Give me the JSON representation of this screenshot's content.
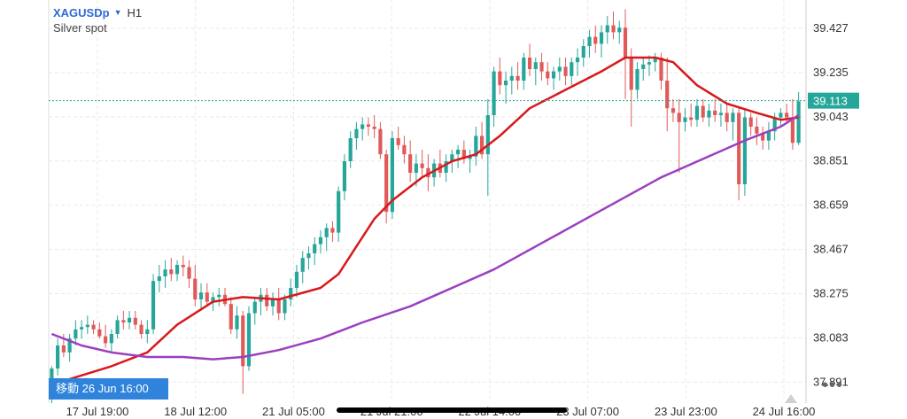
{
  "header": {
    "symbol": "XAGUSDp",
    "timeframe": "H1",
    "subtitle": "Silver spot"
  },
  "nav_button": {
    "label": "移動 26 Jun 16:00"
  },
  "more_icon": "more-horizontal-icon",
  "colors": {
    "up": "#26a69a",
    "down": "#e05a5a",
    "ma_fast": "#d7191c",
    "ma_slow": "#9b3fc0",
    "price_line": "#26a69a",
    "grid": "#e9e9e9",
    "accent": "#2f83db"
  },
  "chart_data": {
    "type": "candlestick",
    "symbol": "XAGUSDp",
    "timeframe": "H1",
    "ylim": [
      37.8,
      39.55
    ],
    "y_ticks": [
      "39.427",
      "39.235",
      "39.043",
      "38.851",
      "38.659",
      "38.467",
      "38.275",
      "38.083",
      "37.891"
    ],
    "current_price": "39.113",
    "x_tick_labels": [
      "17 Jul 19:00",
      "18 Jul 12:00",
      "21 Jul 05:00",
      "21 Jul 21:00",
      "22 Jul 14:00",
      "23 Jul 07:00",
      "23 Jul 23:00",
      "24 Jul 16:00"
    ],
    "grid": true,
    "candles": [
      [
        37.84,
        37.96,
        37.8,
        37.95
      ],
      [
        37.95,
        38.08,
        37.92,
        38.05
      ],
      [
        38.05,
        38.1,
        38.0,
        38.02
      ],
      [
        38.02,
        38.1,
        37.98,
        38.08
      ],
      [
        38.08,
        38.16,
        38.05,
        38.12
      ],
      [
        38.12,
        38.16,
        38.08,
        38.13
      ],
      [
        38.13,
        38.18,
        38.1,
        38.14
      ],
      [
        38.14,
        38.16,
        38.1,
        38.12
      ],
      [
        38.12,
        38.15,
        38.08,
        38.09
      ],
      [
        38.09,
        38.14,
        38.04,
        38.06
      ],
      [
        38.06,
        38.12,
        38.02,
        38.1
      ],
      [
        38.1,
        38.18,
        38.08,
        38.16
      ],
      [
        38.16,
        38.2,
        38.12,
        38.15
      ],
      [
        38.15,
        38.2,
        38.12,
        38.17
      ],
      [
        38.17,
        38.2,
        38.12,
        38.14
      ],
      [
        38.14,
        38.16,
        38.08,
        38.1
      ],
      [
        38.1,
        38.16,
        38.06,
        38.12
      ],
      [
        38.12,
        38.36,
        38.1,
        38.33
      ],
      [
        38.33,
        38.4,
        38.28,
        38.35
      ],
      [
        38.35,
        38.42,
        38.3,
        38.38
      ],
      [
        38.38,
        38.43,
        38.33,
        38.36
      ],
      [
        38.36,
        38.42,
        38.33,
        38.4
      ],
      [
        38.4,
        38.44,
        38.35,
        38.39
      ],
      [
        38.39,
        38.42,
        38.3,
        38.34
      ],
      [
        38.34,
        38.4,
        38.22,
        38.25
      ],
      [
        38.25,
        38.32,
        38.2,
        38.28
      ],
      [
        38.28,
        38.32,
        38.22,
        38.24
      ],
      [
        38.24,
        38.28,
        38.2,
        38.26
      ],
      [
        38.26,
        38.3,
        38.22,
        38.27
      ],
      [
        38.27,
        38.3,
        38.22,
        38.23
      ],
      [
        38.23,
        38.26,
        38.1,
        38.12
      ],
      [
        38.12,
        38.22,
        38.08,
        38.18
      ],
      [
        38.18,
        38.2,
        37.84,
        37.96
      ],
      [
        37.96,
        38.22,
        37.94,
        38.19
      ],
      [
        38.19,
        38.26,
        38.14,
        38.24
      ],
      [
        38.24,
        38.3,
        38.18,
        38.27
      ],
      [
        38.27,
        38.3,
        38.2,
        38.22
      ],
      [
        38.22,
        38.28,
        38.18,
        38.25
      ],
      [
        38.25,
        38.3,
        38.16,
        38.19
      ],
      [
        38.19,
        38.27,
        38.16,
        38.25
      ],
      [
        38.25,
        38.34,
        38.22,
        38.3
      ],
      [
        38.3,
        38.4,
        38.26,
        38.37
      ],
      [
        38.37,
        38.46,
        38.32,
        38.43
      ],
      [
        38.43,
        38.48,
        38.38,
        38.45
      ],
      [
        38.45,
        38.52,
        38.4,
        38.49
      ],
      [
        38.49,
        38.55,
        38.45,
        38.52
      ],
      [
        38.52,
        38.58,
        38.46,
        38.56
      ],
      [
        38.56,
        38.59,
        38.5,
        38.54
      ],
      [
        38.54,
        38.74,
        38.5,
        38.72
      ],
      [
        38.72,
        38.88,
        38.68,
        38.85
      ],
      [
        38.85,
        38.98,
        38.82,
        38.95
      ],
      [
        38.95,
        39.02,
        38.9,
        38.99
      ],
      [
        38.99,
        39.04,
        38.94,
        39.01
      ],
      [
        39.01,
        39.04,
        38.96,
        39.0
      ],
      [
        39.0,
        39.05,
        38.95,
        38.99
      ],
      [
        38.99,
        39.02,
        38.86,
        38.88
      ],
      [
        38.88,
        38.9,
        38.58,
        38.63
      ],
      [
        38.63,
        38.98,
        38.6,
        38.95
      ],
      [
        38.95,
        39.0,
        38.9,
        38.92
      ],
      [
        38.92,
        38.96,
        38.84,
        38.88
      ],
      [
        38.88,
        38.94,
        38.76,
        38.8
      ],
      [
        38.8,
        38.88,
        38.74,
        38.84
      ],
      [
        38.84,
        38.9,
        38.78,
        38.82
      ],
      [
        38.82,
        38.88,
        38.72,
        38.78
      ],
      [
        38.78,
        38.86,
        38.74,
        38.84
      ],
      [
        38.84,
        38.9,
        38.78,
        38.8
      ],
      [
        38.8,
        38.88,
        38.76,
        38.85
      ],
      [
        38.85,
        38.9,
        38.8,
        38.88
      ],
      [
        38.88,
        38.92,
        38.82,
        38.9
      ],
      [
        38.9,
        38.94,
        38.84,
        38.86
      ],
      [
        38.86,
        38.9,
        38.8,
        38.87
      ],
      [
        38.87,
        39.0,
        38.83,
        38.96
      ],
      [
        38.96,
        39.02,
        38.86,
        38.88
      ],
      [
        38.88,
        39.12,
        38.7,
        39.05
      ],
      [
        39.05,
        39.26,
        39.0,
        39.24
      ],
      [
        39.24,
        39.3,
        39.14,
        39.18
      ],
      [
        39.18,
        39.24,
        39.1,
        39.2
      ],
      [
        39.2,
        39.26,
        39.14,
        39.22
      ],
      [
        39.22,
        39.28,
        39.16,
        39.2
      ],
      [
        39.2,
        39.32,
        39.16,
        39.3
      ],
      [
        39.3,
        39.36,
        39.22,
        39.25
      ],
      [
        39.25,
        39.3,
        39.18,
        39.28
      ],
      [
        39.28,
        39.32,
        39.2,
        39.24
      ],
      [
        39.24,
        39.28,
        39.18,
        39.21
      ],
      [
        39.21,
        39.26,
        39.16,
        39.24
      ],
      [
        39.24,
        39.3,
        39.2,
        39.26
      ],
      [
        39.26,
        39.3,
        39.18,
        39.22
      ],
      [
        39.22,
        39.3,
        39.18,
        39.28
      ],
      [
        39.28,
        39.34,
        39.22,
        39.3
      ],
      [
        39.3,
        39.38,
        39.26,
        39.35
      ],
      [
        39.35,
        39.42,
        39.3,
        39.39
      ],
      [
        39.39,
        39.44,
        39.32,
        39.36
      ],
      [
        39.36,
        39.44,
        39.3,
        39.41
      ],
      [
        39.41,
        39.48,
        39.36,
        39.44
      ],
      [
        39.44,
        39.5,
        39.38,
        39.41
      ],
      [
        39.41,
        39.46,
        39.36,
        39.43
      ],
      [
        39.43,
        39.51,
        39.12,
        39.3
      ],
      [
        39.3,
        39.34,
        39.0,
        39.16
      ],
      [
        39.16,
        39.28,
        39.12,
        39.25
      ],
      [
        39.25,
        39.3,
        39.2,
        39.27
      ],
      [
        39.27,
        39.31,
        39.22,
        39.28
      ],
      [
        39.28,
        39.32,
        39.24,
        39.3
      ],
      [
        39.3,
        39.32,
        39.16,
        39.2
      ],
      [
        39.2,
        39.3,
        38.98,
        39.08
      ],
      [
        39.08,
        39.12,
        39.02,
        39.06
      ],
      [
        39.06,
        39.12,
        38.8,
        39.02
      ],
      [
        39.02,
        39.08,
        38.98,
        39.04
      ],
      [
        39.04,
        39.1,
        39.0,
        39.03
      ],
      [
        39.03,
        39.12,
        39.0,
        39.09
      ],
      [
        39.09,
        39.12,
        39.02,
        39.04
      ],
      [
        39.04,
        39.1,
        39.0,
        39.07
      ],
      [
        39.07,
        39.12,
        39.02,
        39.05
      ],
      [
        39.05,
        39.1,
        39.0,
        39.06
      ],
      [
        39.06,
        39.1,
        38.98,
        39.02
      ],
      [
        39.02,
        39.08,
        38.94,
        39.06
      ],
      [
        39.06,
        39.08,
        38.68,
        38.75
      ],
      [
        38.75,
        39.08,
        38.7,
        39.04
      ],
      [
        39.04,
        39.06,
        38.96,
        39.0
      ],
      [
        39.0,
        39.04,
        38.92,
        38.97
      ],
      [
        38.97,
        39.0,
        38.9,
        38.94
      ],
      [
        38.94,
        39.02,
        38.9,
        38.98
      ],
      [
        38.98,
        39.06,
        38.94,
        39.04
      ],
      [
        39.04,
        39.08,
        39.0,
        39.06
      ],
      [
        39.06,
        39.1,
        39.02,
        39.04
      ],
      [
        39.04,
        39.12,
        38.9,
        38.93
      ],
      [
        38.93,
        39.15,
        38.92,
        39.11
      ]
    ],
    "series": [
      {
        "name": "",
        "color": "#d7191c",
        "values": [
          [
            0,
            37.88
          ],
          [
            5,
            37.92
          ],
          [
            10,
            37.96
          ],
          [
            16,
            38.02
          ],
          [
            21,
            38.14
          ],
          [
            27,
            38.24
          ],
          [
            32,
            38.26
          ],
          [
            38,
            38.25
          ],
          [
            45,
            38.3
          ],
          [
            48,
            38.36
          ],
          [
            51,
            38.48
          ],
          [
            54,
            38.6
          ],
          [
            57,
            38.68
          ],
          [
            62,
            38.78
          ],
          [
            67,
            38.85
          ],
          [
            71,
            38.88
          ],
          [
            75,
            38.96
          ],
          [
            80,
            39.08
          ],
          [
            86,
            39.16
          ],
          [
            92,
            39.24
          ],
          [
            96,
            39.3
          ],
          [
            101,
            39.3
          ],
          [
            104,
            39.28
          ],
          [
            108,
            39.18
          ],
          [
            113,
            39.1
          ],
          [
            118,
            39.06
          ],
          [
            122,
            39.03
          ],
          [
            125,
            39.04
          ]
        ]
      },
      {
        "name": "",
        "color": "#9b3fc0",
        "values": [
          [
            0,
            38.1
          ],
          [
            5,
            38.05
          ],
          [
            10,
            38.02
          ],
          [
            16,
            38.0
          ],
          [
            22,
            38.0
          ],
          [
            27,
            37.99
          ],
          [
            32,
            38.0
          ],
          [
            38,
            38.03
          ],
          [
            45,
            38.08
          ],
          [
            52,
            38.15
          ],
          [
            60,
            38.22
          ],
          [
            67,
            38.3
          ],
          [
            74,
            38.38
          ],
          [
            81,
            38.48
          ],
          [
            88,
            38.58
          ],
          [
            95,
            38.68
          ],
          [
            102,
            38.78
          ],
          [
            109,
            38.86
          ],
          [
            116,
            38.94
          ],
          [
            122,
            39.0
          ],
          [
            125,
            39.05
          ]
        ]
      }
    ]
  }
}
